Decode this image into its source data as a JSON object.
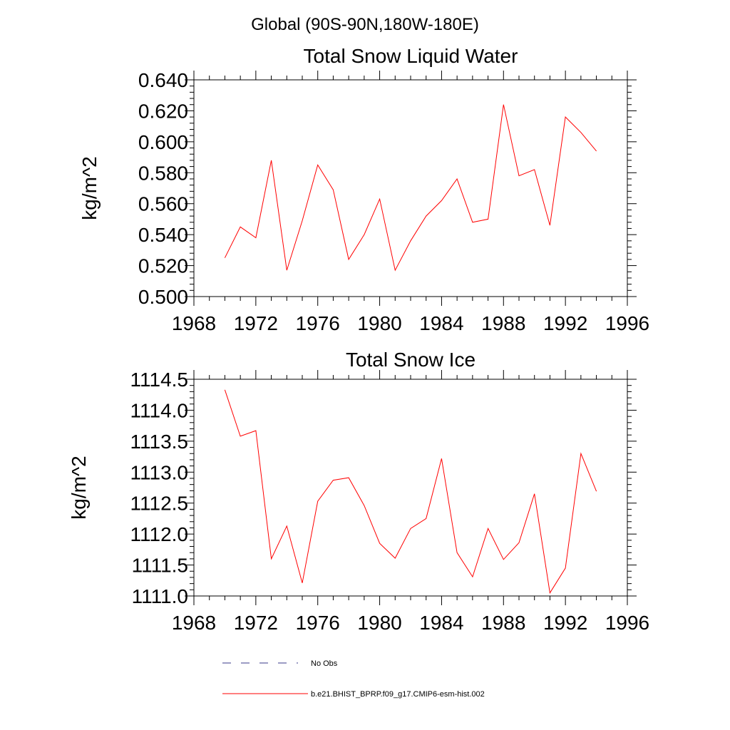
{
  "figure_title": "Global (90S-90N,180W-180E)",
  "colors": {
    "model_line": "#ff0000",
    "obs_line": "#3a3a8a",
    "axis": "#000000"
  },
  "chart_data": [
    {
      "type": "line",
      "title": "Total Snow Liquid Water",
      "xlabel": "",
      "ylabel": "kg/m^2",
      "xlim": [
        1968,
        1996
      ],
      "ylim": [
        0.5,
        0.64
      ],
      "xticks": [
        1968,
        1972,
        1976,
        1980,
        1984,
        1988,
        1992,
        1996
      ],
      "yticks": [
        0.5,
        0.52,
        0.54,
        0.56,
        0.58,
        0.6,
        0.62,
        0.64
      ],
      "ytick_labels": [
        "0.500",
        "0.520",
        "0.540",
        "0.560",
        "0.580",
        "0.600",
        "0.620",
        "0.640"
      ],
      "series": [
        {
          "name": "b.e21.BHIST_BPRP.f09_g17.CMIP6-esm-hist.002",
          "color": "#ff0000",
          "x": [
            1970,
            1971,
            1972,
            1973,
            1974,
            1975,
            1976,
            1977,
            1978,
            1979,
            1980,
            1981,
            1982,
            1983,
            1984,
            1985,
            1986,
            1987,
            1988,
            1989,
            1990,
            1991,
            1992,
            1993,
            1994
          ],
          "values": [
            0.525,
            0.545,
            0.538,
            0.588,
            0.517,
            0.549,
            0.585,
            0.569,
            0.524,
            0.54,
            0.563,
            0.517,
            0.536,
            0.552,
            0.562,
            0.576,
            0.548,
            0.55,
            0.624,
            0.578,
            0.582,
            0.546,
            0.616,
            0.606,
            0.594
          ]
        }
      ]
    },
    {
      "type": "line",
      "title": "Total Snow Ice",
      "xlabel": "",
      "ylabel": "kg/m^2",
      "xlim": [
        1968,
        1996
      ],
      "ylim": [
        1111.0,
        1114.5
      ],
      "xticks": [
        1968,
        1972,
        1976,
        1980,
        1984,
        1988,
        1992,
        1996
      ],
      "yticks": [
        1111.0,
        1111.5,
        1112.0,
        1112.5,
        1113.0,
        1113.5,
        1114.0,
        1114.5
      ],
      "ytick_labels": [
        "1111.0",
        "1111.5",
        "1112.0",
        "1112.5",
        "1113.0",
        "1113.5",
        "1114.0",
        "1114.5"
      ],
      "series": [
        {
          "name": "b.e21.BHIST_BPRP.f09_g17.CMIP6-esm-hist.002",
          "color": "#ff0000",
          "x": [
            1970,
            1971,
            1972,
            1973,
            1974,
            1975,
            1976,
            1977,
            1978,
            1979,
            1980,
            1981,
            1982,
            1983,
            1984,
            1985,
            1986,
            1987,
            1988,
            1989,
            1990,
            1991,
            1992,
            1993,
            1994
          ],
          "values": [
            1114.33,
            1113.58,
            1113.67,
            1111.6,
            1112.13,
            1111.21,
            1112.53,
            1112.87,
            1112.91,
            1112.46,
            1111.85,
            1111.61,
            1112.09,
            1112.25,
            1113.22,
            1111.7,
            1111.31,
            1112.09,
            1111.59,
            1111.86,
            1112.65,
            1111.05,
            1111.45,
            1113.3,
            1112.69
          ]
        }
      ]
    }
  ],
  "legend": {
    "placement": "bottom-center",
    "items": [
      {
        "label": "No Obs",
        "style": "dashed",
        "color": "#3a3a8a"
      },
      {
        "label": "b.e21.BHIST_BPRP.f09_g17.CMIP6-esm-hist.002",
        "style": "solid",
        "color": "#ff0000"
      }
    ]
  }
}
